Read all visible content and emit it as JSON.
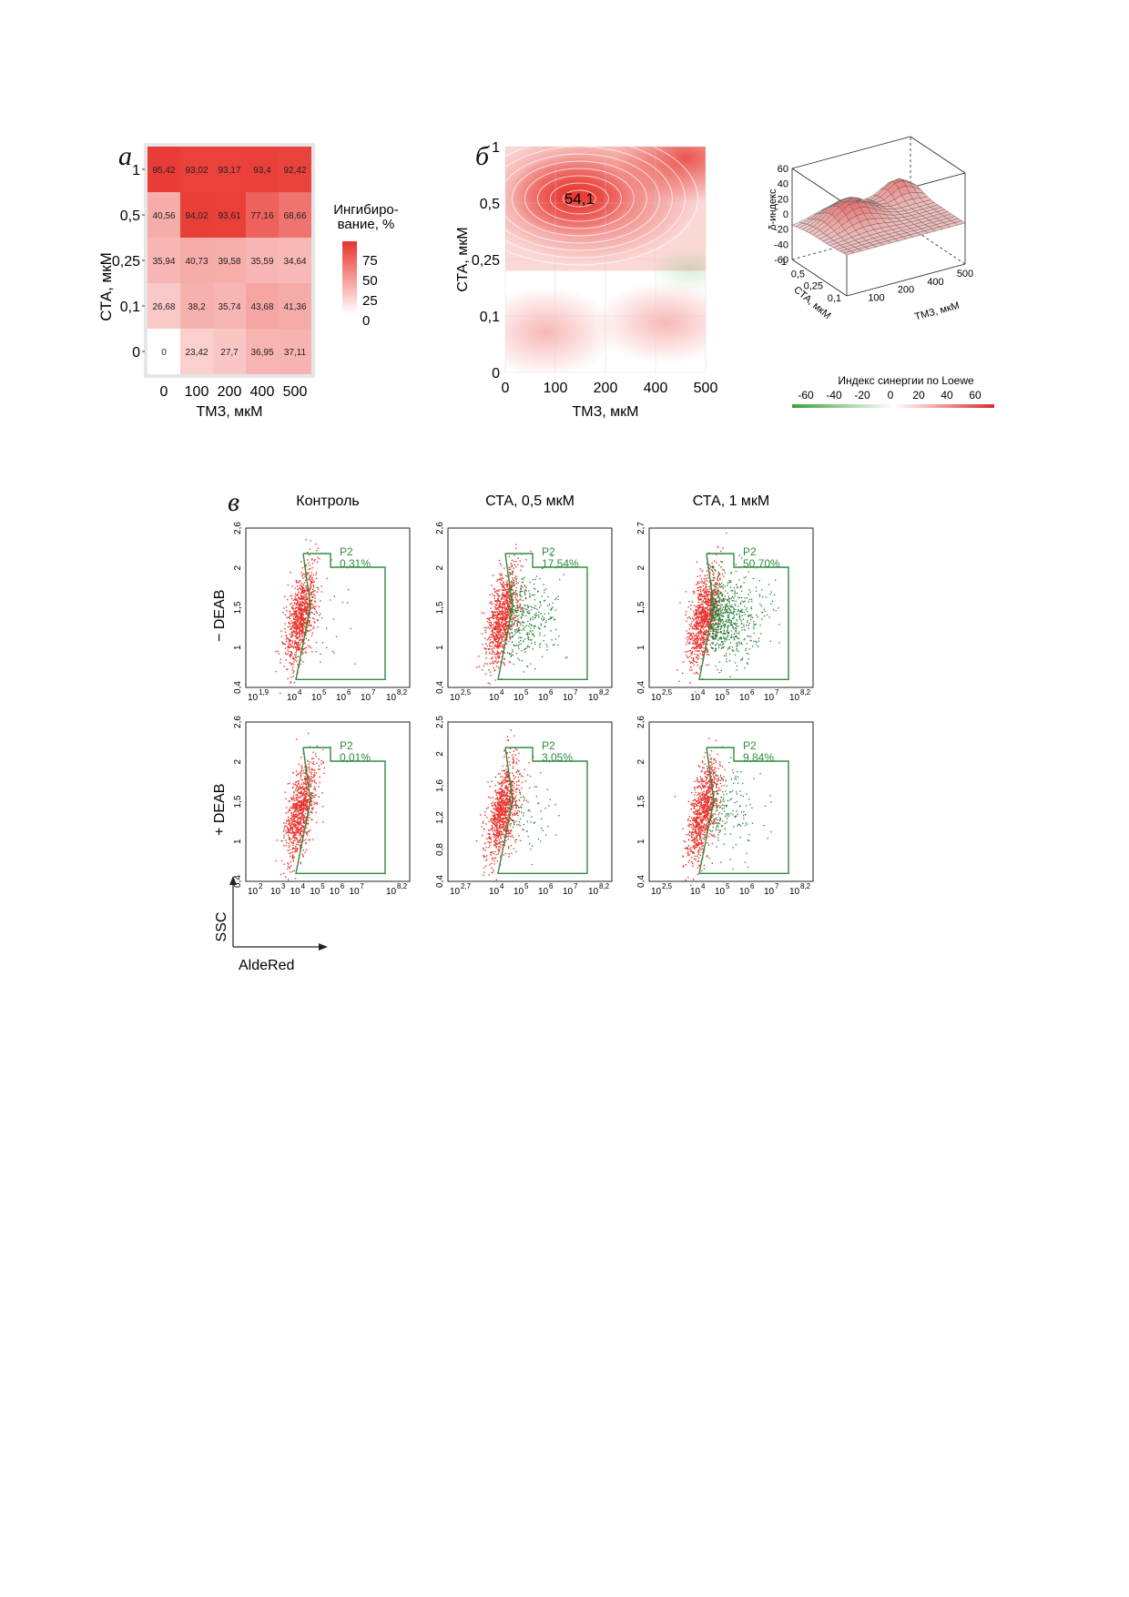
{
  "panel_a": {
    "letter": "а",
    "ylabel": "СТА, мкМ",
    "xlabel": "ТМЗ, мкМ",
    "legend_title_line1": "Ингибиро-",
    "legend_title_line2": "вание, %",
    "legend_ticks": [
      "75",
      "50",
      "25",
      "0"
    ],
    "colors": {
      "high": "#e8332c",
      "low": "#ffffff"
    }
  },
  "panel_b": {
    "letter": "б",
    "ylabel": "СТА, мкМ",
    "xlabel": "ТМЗ, мкМ",
    "x_ticks": [
      "0",
      "100",
      "200",
      "400",
      "500"
    ],
    "y_ticks": [
      "0",
      "0,1",
      "0,25",
      "0,5",
      "1"
    ],
    "peak_label": "54,1",
    "surface": {
      "z_label": "δ-индекс",
      "z_ticks": [
        "60",
        "40",
        "20",
        "0",
        "-20",
        "-40",
        "-60"
      ],
      "y_label": "СТА, мкМ",
      "y_ticks": [
        "1",
        "0,5",
        "0,25",
        "0,1"
      ],
      "x_label": "ТМЗ, мкМ",
      "x_ticks": [
        "100",
        "200",
        "400",
        "500"
      ]
    },
    "synergy_legend": {
      "title": "Индекс синергии по Loewe",
      "ticks": [
        "-60",
        "-40",
        "-20",
        "0",
        "20",
        "40",
        "60"
      ],
      "colors": {
        "neg": "#3aa335",
        "mid": "#ffffff",
        "pos": "#e02a2a"
      }
    }
  },
  "panel_c": {
    "letter": "в",
    "row_labels": [
      "− DEAB",
      "+ DEAB"
    ],
    "col_titles": [
      "Контроль",
      "СТА, 0,5 мкМ",
      "СТА, 1 мкМ"
    ],
    "gate_name": "P2",
    "axis_y_name": "SSC",
    "axis_x_name": "AldeRed",
    "colors": {
      "main": "#e8322b",
      "gated": "#1f7a2e",
      "gate": "#2e8b3d"
    },
    "plots": [
      {
        "row": 0,
        "col": 0,
        "gate_pct": "0,31%",
        "x_first": "1,9",
        "x_ticks": [
          "4",
          "5",
          "6",
          "7"
        ],
        "x_last": "8,2",
        "y_ticks": [
          "0,4",
          "1",
          "1,5",
          "2",
          "2,6"
        ],
        "green_density": 0.04
      },
      {
        "row": 0,
        "col": 1,
        "gate_pct": "17,54%",
        "x_first": "2,5",
        "x_ticks": [
          "4",
          "5",
          "6",
          "7"
        ],
        "x_last": "8,2",
        "y_ticks": [
          "0,4",
          "1",
          "1,5",
          "2",
          "2,6"
        ],
        "green_density": 0.5
      },
      {
        "row": 0,
        "col": 2,
        "gate_pct": "50,70%",
        "x_first": "2,5",
        "x_ticks": [
          "4",
          "5",
          "6",
          "7"
        ],
        "x_last": "8,2",
        "y_ticks": [
          "0,4",
          "1",
          "1,5",
          "2",
          "2,7"
        ],
        "green_density": 1.0
      },
      {
        "row": 1,
        "col": 0,
        "gate_pct": "0,01%",
        "x_first": "2",
        "x_ticks": [
          "3",
          "4",
          "5",
          "6",
          "7"
        ],
        "x_last": "8,2",
        "y_ticks": [
          "0,4",
          "1",
          "1,5",
          "2",
          "2,6"
        ],
        "green_density": 0.0
      },
      {
        "row": 1,
        "col": 1,
        "gate_pct": "3,05%",
        "x_first": "2,7",
        "x_ticks": [
          "4",
          "5",
          "6",
          "7"
        ],
        "x_last": "8,2",
        "y_ticks": [
          "0,4",
          "0,8",
          "1,2",
          "1,6",
          "2",
          "2,5"
        ],
        "green_density": 0.12
      },
      {
        "row": 1,
        "col": 2,
        "gate_pct": "9,84%",
        "x_first": "2,5",
        "x_ticks": [
          "4",
          "5",
          "6",
          "7"
        ],
        "x_last": "8,2",
        "y_ticks": [
          "0,4",
          "1",
          "1,5",
          "2",
          "2,6"
        ],
        "green_density": 0.25
      }
    ]
  },
  "chart_data": [
    {
      "type": "heatmap",
      "x": [
        "0",
        "100",
        "200",
        "400",
        "500"
      ],
      "y": [
        "1",
        "0,5",
        "0,25",
        "0,1",
        "0"
      ],
      "values": [
        [
          "95,42",
          "93,02",
          "93,17",
          "93,4",
          "92,42"
        ],
        [
          "40,56",
          "94,02",
          "93,61",
          "77,16",
          "68,66"
        ],
        [
          "35,94",
          "40,73",
          "39,58",
          "35,59",
          "34,64"
        ],
        [
          "26,68",
          "38,2",
          "35,74",
          "43,68",
          "41,36"
        ],
        [
          "0",
          "23,42",
          "27,7",
          "36,95",
          "37,11"
        ]
      ],
      "xlabel": "ТМЗ, мкМ",
      "ylabel": "СТА, мкМ",
      "colorbar": {
        "ticks": [
          0,
          25,
          50,
          75
        ],
        "range": [
          0,
          100
        ]
      }
    },
    {
      "type": "heatmap",
      "x": [
        0,
        100,
        200,
        400,
        500
      ],
      "y": [
        0,
        0.1,
        0.25,
        0.5,
        1
      ],
      "peak": {
        "x": 150,
        "y": 0.55,
        "value": 54.1
      },
      "xlabel": "ТМЗ, мкМ",
      "ylabel": "СТА, мкМ",
      "colorbar": {
        "range": [
          -60,
          60
        ]
      }
    }
  ]
}
